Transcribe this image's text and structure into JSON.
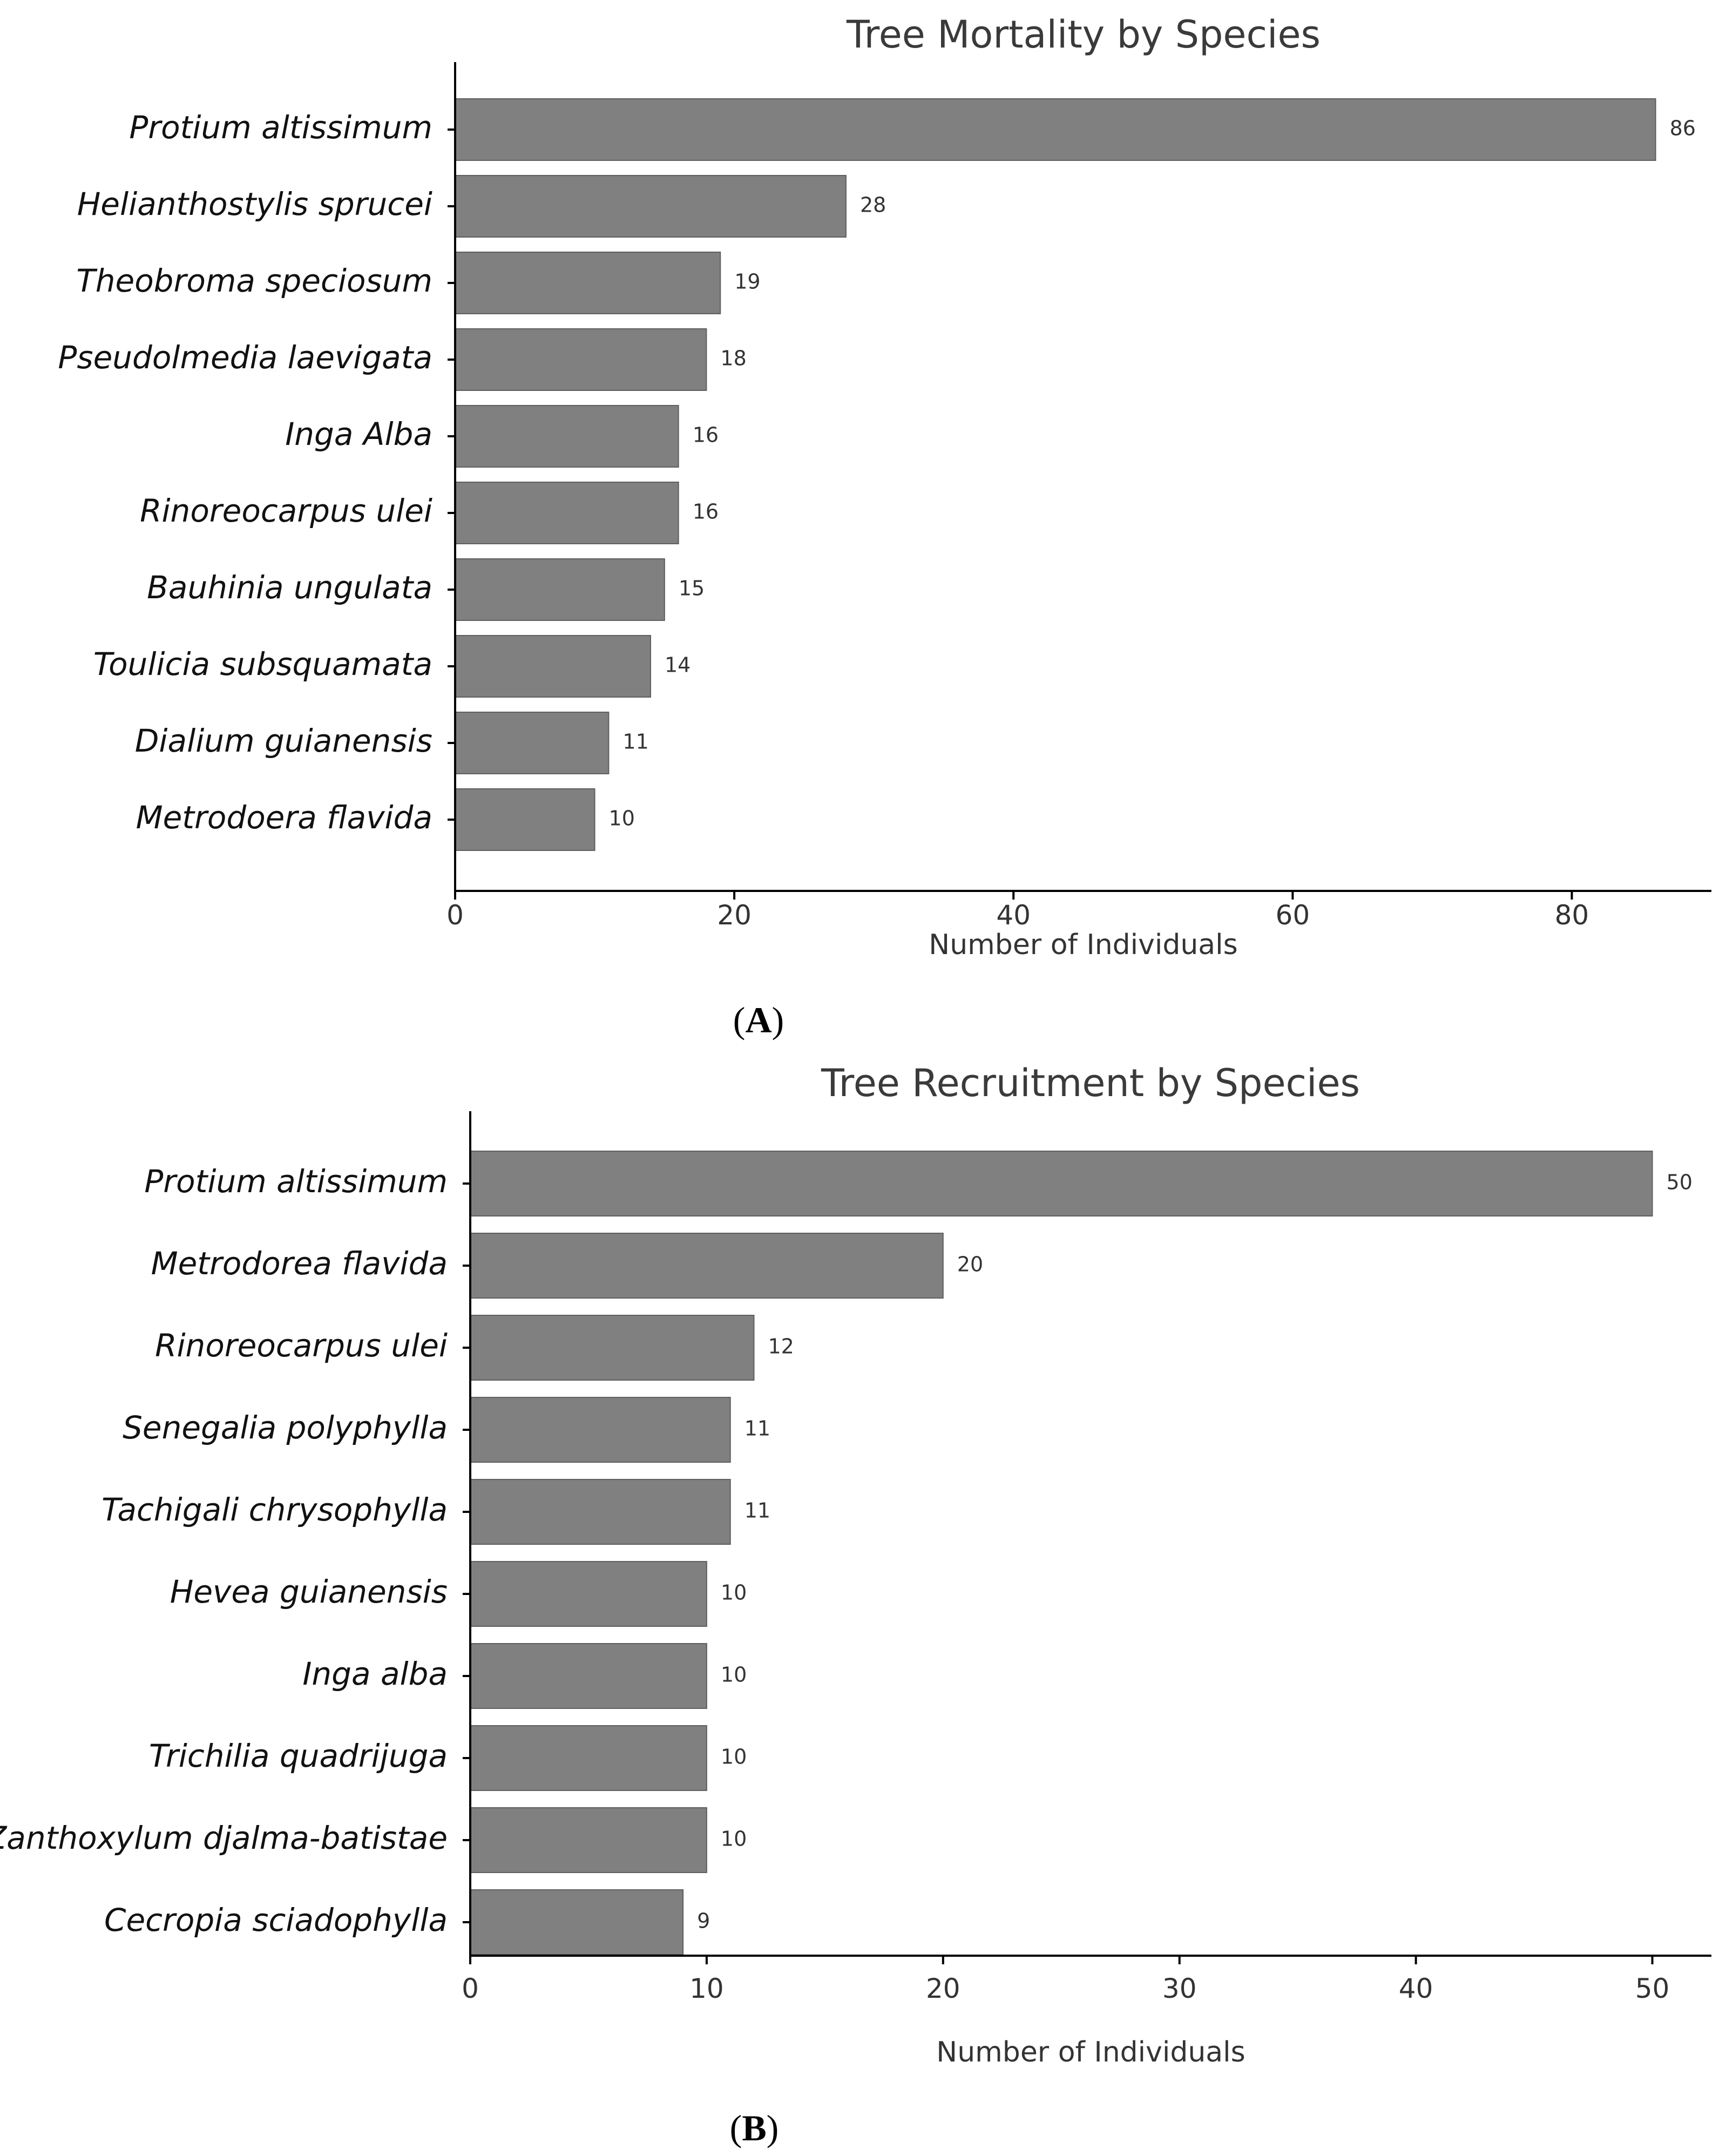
{
  "chart_data": [
    {
      "type": "bar",
      "orientation": "horizontal",
      "title": "Tree Mortality by Species",
      "xlabel": "Number of Individuals",
      "ylabel": "",
      "categories": [
        "Protium altissimum",
        "Helianthostylis sprucei",
        "Theobroma speciosum",
        "Pseudolmedia laevigata",
        "Inga Alba",
        "Rinoreocarpus ulei",
        "Bauhinia ungulata",
        "Toulicia subsquamata",
        "Dialium guianensis",
        "Metrodoera flavida"
      ],
      "values": [
        86,
        28,
        19,
        18,
        16,
        16,
        15,
        14,
        11,
        10
      ],
      "xlim": [
        0,
        90
      ],
      "xticks": [
        0,
        20,
        40,
        60,
        80
      ],
      "grid": false,
      "panel_label": {
        "open": "(",
        "letter": "A",
        "close": ")"
      },
      "colors": {
        "bar": "#808080"
      }
    },
    {
      "type": "bar",
      "orientation": "horizontal",
      "title": "Tree Recruitment by Species",
      "xlabel": "Number of Individuals",
      "ylabel": "",
      "categories": [
        "Protium altissimum",
        "Metrodorea flavida",
        "Rinoreocarpus ulei",
        "Senegalia polyphylla",
        "Tachigali chrysophylla",
        "Hevea guianensis",
        "Inga alba",
        "Trichilia quadrijuga",
        "Zanthoxylum djalma-batistae",
        "Cecropia sciadophylla"
      ],
      "values": [
        50,
        20,
        12,
        11,
        11,
        10,
        10,
        10,
        10,
        9
      ],
      "xlim": [
        0,
        52.5
      ],
      "xticks": [
        0,
        10,
        20,
        30,
        40,
        50
      ],
      "grid": false,
      "panel_label": {
        "open": "(",
        "letter": "B",
        "close": ")"
      },
      "colors": {
        "bar": "#808080"
      }
    }
  ]
}
